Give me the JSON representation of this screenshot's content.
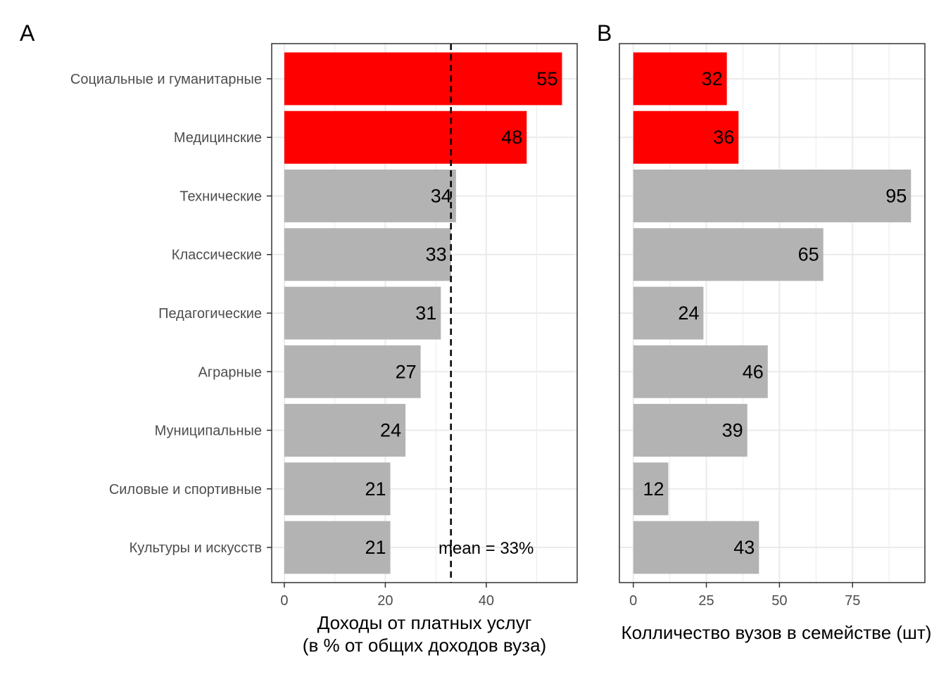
{
  "colors": {
    "highlight": "#ff0000",
    "default": "#b3b3b3",
    "grid": "#ebebeb",
    "panel_border": "#333333",
    "mean_line": "#000000"
  },
  "chart_data": [
    {
      "type": "bar",
      "orientation": "horizontal",
      "tag": "A",
      "title": "",
      "categories": [
        "Социальные и гуманитарные",
        "Медицинские",
        "Технические",
        "Классические",
        "Педагогические",
        "Аграрные",
        "Муниципальные",
        "Силовые и спортивные",
        "Культуры и искусств"
      ],
      "values": [
        55,
        48,
        34,
        33,
        31,
        27,
        24,
        21,
        21
      ],
      "highlight": [
        true,
        true,
        false,
        false,
        false,
        false,
        false,
        false,
        false
      ],
      "xlabel_line1": "Доходы от платных услуг",
      "xlabel_line2": "(в % от общих доходов вуза)",
      "ylabel": "",
      "xlim": [
        -2.5,
        58
      ],
      "xticks": [
        0,
        20,
        40
      ],
      "minor_ticks": [
        10,
        30,
        50
      ],
      "grid": true,
      "mean_line": {
        "value": 33,
        "label": "mean = 33%"
      }
    },
    {
      "type": "bar",
      "orientation": "horizontal",
      "tag": "B",
      "title": "",
      "categories": [
        "Социальные и гуманитарные",
        "Медицинские",
        "Технические",
        "Классические",
        "Педагогические",
        "Аграрные",
        "Муниципальные",
        "Силовые и спортивные",
        "Культуры и искусств"
      ],
      "values": [
        32,
        36,
        95,
        65,
        24,
        46,
        39,
        12,
        43
      ],
      "highlight": [
        true,
        true,
        false,
        false,
        false,
        false,
        false,
        false,
        false
      ],
      "xlabel": "Колличество вузов в семействе (шт)",
      "ylabel": "",
      "xlim": [
        -4.75,
        99.75
      ],
      "xticks": [
        0,
        25,
        50,
        75
      ],
      "minor_ticks": [
        12.5,
        37.5,
        62.5,
        87.5
      ],
      "grid": true
    }
  ]
}
